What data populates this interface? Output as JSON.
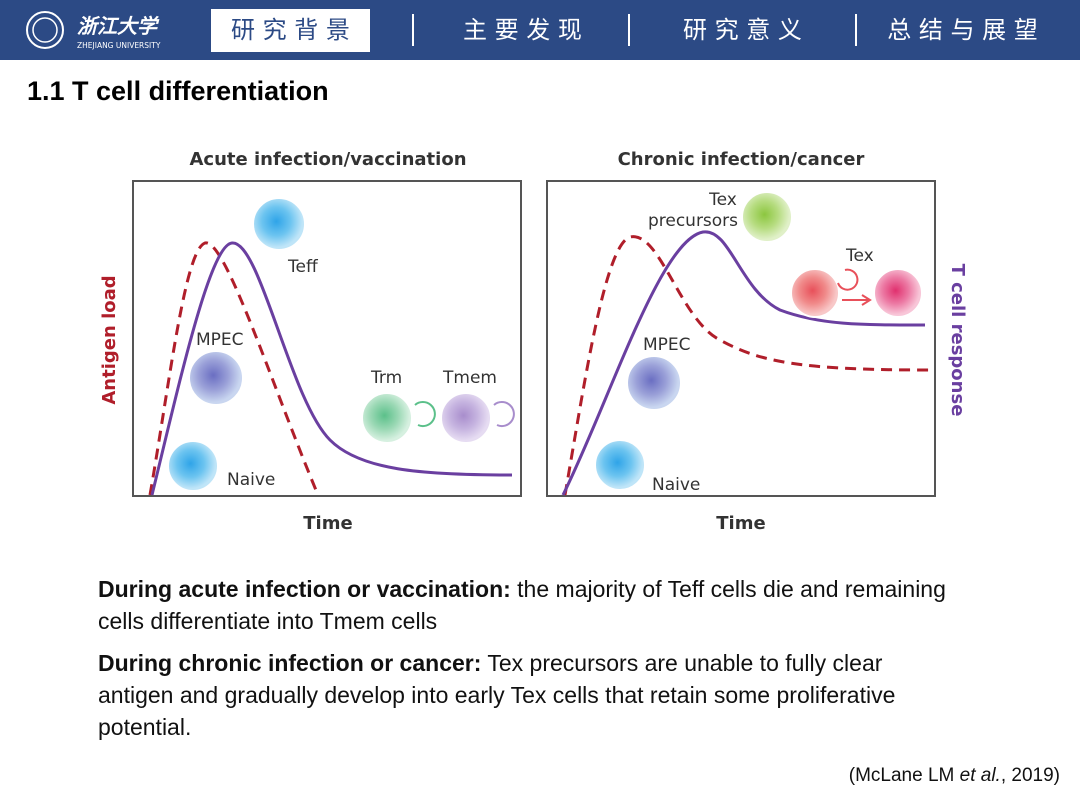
{
  "header": {
    "logo_text": "浙江大学",
    "logo_sub": "ZHEJIANG UNIVERSITY",
    "nav": [
      "研 究 背 景",
      "主 要 发 现",
      "研 究 意 义",
      "总 结 与 展 望"
    ]
  },
  "section_title": "1.1 T cell differentiation",
  "figure": {
    "y_label_left": "Antigen load",
    "y_label_right": "T cell response",
    "left_panel": {
      "title": "Acute infection/vaccination",
      "x_label": "Time",
      "cells": [
        "Teff",
        "MPEC",
        "Naive",
        "Trm",
        "Tmem"
      ]
    },
    "right_panel": {
      "title": "Chronic infection/cancer",
      "x_label": "Time",
      "tex_precursors": [
        "Tex",
        "precursors"
      ],
      "cells": [
        "MPEC",
        "Naive",
        "Tex"
      ]
    }
  },
  "body": [
    {
      "lead": "During acute infection or vaccination:",
      "text": "the majority of Teff cells die and remaining cells differentiate into Tmem cells"
    },
    {
      "lead": "During chronic infection or cancer:",
      "text": "Tex precursors are unable to fully clear antigen and gradually develop into early Tex cells that retain some proliferative potential."
    }
  ],
  "citation": {
    "before": "(McLane LM ",
    "italic": "et al.",
    "after": ", 2019)"
  }
}
